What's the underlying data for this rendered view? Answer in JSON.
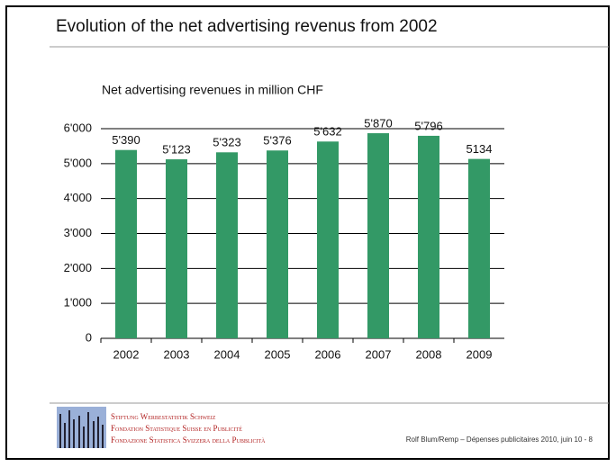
{
  "slide": {
    "title": "Evolution of the net advertising revenus from 2002",
    "org_lines": [
      "Stiftung Werbestatistik Schweiz",
      "Fondation Statistique Suisse en Publicité",
      "Fondazione Statistica Svizzera della Pubblicità"
    ],
    "footer": "Rolf Blum/Remp – Dépenses publicitaires 2010, juin 10 - 8"
  },
  "chart_data": {
    "type": "bar",
    "title": "Net advertising revenues in million CHF",
    "categories": [
      "2002",
      "2003",
      "2004",
      "2005",
      "2006",
      "2007",
      "2008",
      "2009"
    ],
    "values": [
      5390,
      5123,
      5323,
      5376,
      5632,
      5870,
      5796,
      5134
    ],
    "value_labels": [
      "5'390",
      "5'123",
      "5'323",
      "5'376",
      "5'632",
      "5'870",
      "5'796",
      "5134"
    ],
    "color": "#339966",
    "ylim": [
      0,
      6000
    ],
    "yticks": [
      0,
      {
        "value": 1000,
        "label": "1'000"
      },
      {
        "value": 2000,
        "label": "2'000"
      },
      {
        "value": 3000,
        "label": "3'000"
      },
      {
        "value": 4000,
        "label": "4'000"
      },
      {
        "value": 5000,
        "label": "5'000"
      },
      {
        "value": 6000,
        "label": "6'000"
      }
    ],
    "grid": true
  }
}
